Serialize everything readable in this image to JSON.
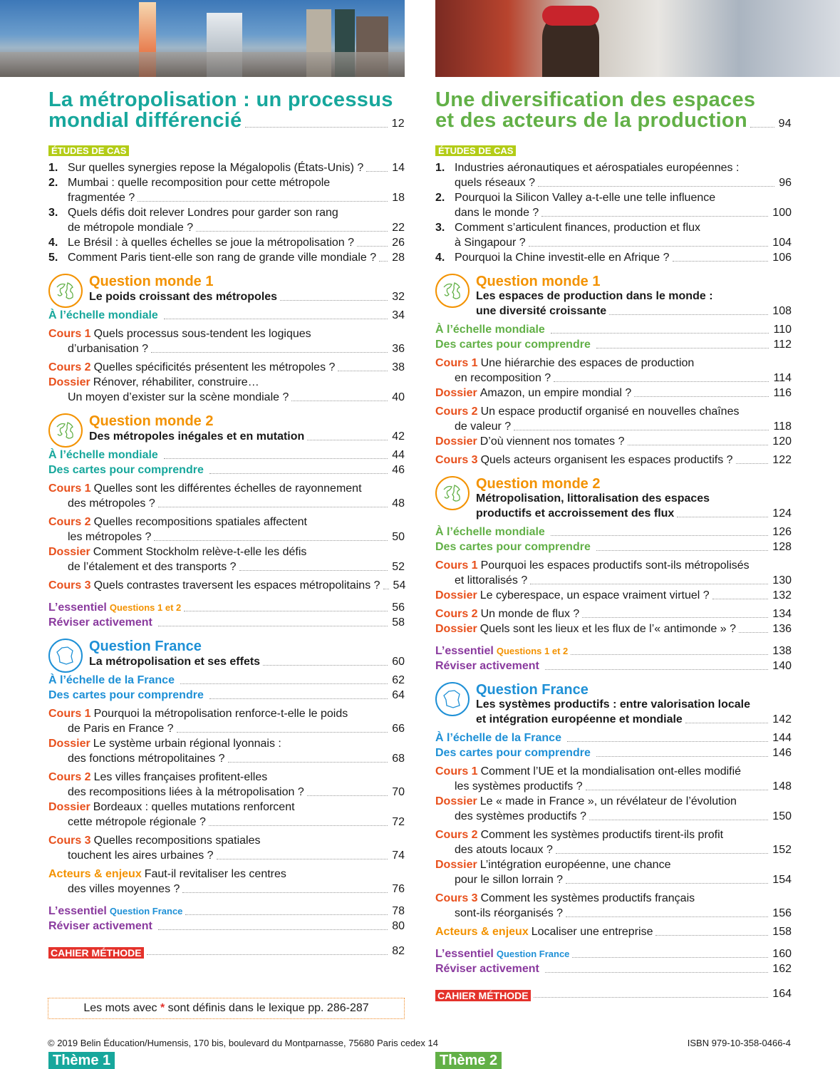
{
  "colors": {
    "theme1": "#17a79c",
    "theme2": "#62b047",
    "question_monde": "#f39200",
    "question_france": "#1e90d6",
    "cours": "#e8501c",
    "acteurs": "#f39200",
    "essentiel": "#8a3a9e",
    "cahier": "#e4322b",
    "etudes_tag": "#b3cc17"
  },
  "columns": [
    {
      "theme_label": "Thème 1",
      "title": [
        "La métropolisation : un processus",
        "mondial différencié"
      ],
      "title_page": "12",
      "etudes_label": "ÉTUDES DE CAS",
      "etudes": [
        {
          "num": "1.",
          "lines": [
            "Sur quelles synergies repose la Mégalopolis (États-Unis) ?"
          ],
          "page": "14"
        },
        {
          "num": "2.",
          "lines": [
            "Mumbai : quelle recomposition pour cette métropole",
            "fragmentée ?"
          ],
          "page": "18"
        },
        {
          "num": "3.",
          "lines": [
            "Quels défis doit relever Londres pour garder son rang",
            "de métropole mondiale ?"
          ],
          "page": "22"
        },
        {
          "num": "4.",
          "lines": [
            "Le Brésil : à quelles échelles se joue la métropolisation ?"
          ],
          "page": "26"
        },
        {
          "num": "5.",
          "lines": [
            "Comment Paris tient-elle son rang de grande ville mondiale ?"
          ],
          "page": "28"
        }
      ],
      "blocks": [
        {
          "type": "question",
          "kind": "monde",
          "title": "Question monde 1",
          "subtitle": [
            "Le poids croissant des métropoles"
          ],
          "page": "32"
        },
        {
          "type": "group",
          "entries": [
            {
              "kind": "section",
              "label": "À l’échelle mondiale",
              "page": "34"
            }
          ]
        },
        {
          "type": "group",
          "entries": [
            {
              "kind": "cours",
              "label": "Cours 1",
              "lines": [
                "Quels processus sous-tendent les logiques",
                "d’urbanisation ?"
              ],
              "page": "36"
            }
          ]
        },
        {
          "type": "group",
          "entries": [
            {
              "kind": "cours",
              "label": "Cours 2",
              "lines": [
                "Quelles spécificités présentent les métropoles ?"
              ],
              "page": "38"
            },
            {
              "kind": "cours",
              "label": "Dossier",
              "lines": [
                "Rénover, réhabiliter, construire…",
                "Un moyen d’exister sur la scène mondiale ?"
              ],
              "page": "40"
            }
          ]
        },
        {
          "type": "question",
          "kind": "monde",
          "title": "Question monde 2",
          "subtitle": [
            "Des métropoles inégales et en mutation"
          ],
          "page": "42"
        },
        {
          "type": "group",
          "entries": [
            {
              "kind": "section",
              "label": "À l’échelle mondiale",
              "page": "44"
            },
            {
              "kind": "section",
              "label": "Des cartes pour comprendre",
              "page": "46"
            }
          ]
        },
        {
          "type": "group",
          "entries": [
            {
              "kind": "cours",
              "label": "Cours 1",
              "lines": [
                "Quelles sont les différentes échelles de rayonnement",
                "des métropoles ?"
              ],
              "page": "48"
            }
          ]
        },
        {
          "type": "group",
          "entries": [
            {
              "kind": "cours",
              "label": "Cours 2",
              "lines": [
                "Quelles recompositions spatiales affectent",
                "les métropoles ?"
              ],
              "page": "50"
            },
            {
              "kind": "cours",
              "label": "Dossier",
              "lines": [
                "Comment Stockholm relève-t-elle les défis",
                "de l’étalement et des transports ?"
              ],
              "page": "52"
            }
          ]
        },
        {
          "type": "group",
          "entries": [
            {
              "kind": "cours",
              "label": "Cours 3",
              "lines": [
                "Quels contrastes traversent les espaces métropolitains ?"
              ],
              "page": "54"
            }
          ]
        },
        {
          "type": "group",
          "entries": [
            {
              "kind": "essentiel",
              "label": "L’essentiel",
              "sub": "Questions 1 et 2",
              "sub_kind": "monde",
              "page": "56"
            },
            {
              "kind": "essentiel",
              "label": "Réviser activement",
              "page": "58"
            }
          ]
        },
        {
          "type": "question",
          "kind": "france",
          "title": "Question France",
          "subtitle": [
            "La métropolisation et ses effets"
          ],
          "page": "60"
        },
        {
          "type": "group",
          "entries": [
            {
              "kind": "france",
              "label": "À l’échelle de la France",
              "page": "62"
            },
            {
              "kind": "france",
              "label": "Des cartes pour comprendre",
              "page": "64"
            }
          ]
        },
        {
          "type": "group",
          "entries": [
            {
              "kind": "cours",
              "label": "Cours 1",
              "lines": [
                "Pourquoi la métropolisation renforce-t-elle le poids",
                "de Paris en France ?"
              ],
              "page": "66"
            },
            {
              "kind": "cours",
              "label": "Dossier",
              "lines": [
                "Le système urbain régional lyonnais :",
                "des fonctions métropolitaines ?"
              ],
              "page": "68"
            }
          ]
        },
        {
          "type": "group",
          "entries": [
            {
              "kind": "cours",
              "label": "Cours 2",
              "lines": [
                "Les villes françaises profitent-elles",
                "des recompositions liées à la métropolisation ?"
              ],
              "page": "70"
            },
            {
              "kind": "cours",
              "label": "Dossier",
              "lines": [
                "Bordeaux : quelles mutations renforcent",
                "cette métropole régionale ?"
              ],
              "page": "72"
            }
          ]
        },
        {
          "type": "group",
          "entries": [
            {
              "kind": "cours",
              "label": "Cours 3",
              "lines": [
                "Quelles recompositions spatiales",
                "touchent les aires urbaines ?"
              ],
              "page": "74"
            }
          ]
        },
        {
          "type": "group",
          "entries": [
            {
              "kind": "acteurs",
              "label": "Acteurs & enjeux",
              "lines": [
                "Faut-il revitaliser les centres",
                "des villes moyennes ?"
              ],
              "page": "76"
            }
          ]
        },
        {
          "type": "group",
          "entries": [
            {
              "kind": "essentiel",
              "label": "L’essentiel",
              "sub": "Question France",
              "sub_kind": "france",
              "page": "78"
            },
            {
              "kind": "essentiel",
              "label": "Réviser activement",
              "page": "80"
            }
          ]
        },
        {
          "type": "group",
          "entries": [
            {
              "kind": "cahier",
              "label": "CAHIER MÉTHODE",
              "page": "82"
            }
          ]
        }
      ]
    },
    {
      "theme_label": "Thème 2",
      "title": [
        "Une diversification des espaces",
        "et des acteurs de la production"
      ],
      "title_page": "94",
      "etudes_label": "ÉTUDES DE CAS",
      "etudes": [
        {
          "num": "1.",
          "lines": [
            "Industries aéronautiques et aérospatiales européennes :",
            "quels réseaux ?"
          ],
          "page": "96"
        },
        {
          "num": "2.",
          "lines": [
            "Pourquoi la Silicon Valley a-t-elle une telle influence",
            "dans le monde ?"
          ],
          "page": "100"
        },
        {
          "num": "3.",
          "lines": [
            "Comment s’articulent finances, production et flux",
            "à Singapour ?"
          ],
          "page": "104"
        },
        {
          "num": "4.",
          "lines": [
            "Pourquoi la Chine investit-elle en Afrique ?"
          ],
          "page": "106"
        }
      ],
      "blocks": [
        {
          "type": "question",
          "kind": "monde",
          "title": "Question monde 1",
          "subtitle": [
            "Les espaces de production dans le monde :",
            "une diversité croissante"
          ],
          "page": "108"
        },
        {
          "type": "group",
          "entries": [
            {
              "kind": "section",
              "label": "À l’échelle mondiale",
              "page": "110"
            },
            {
              "kind": "section",
              "label": "Des cartes pour comprendre",
              "page": "112"
            }
          ]
        },
        {
          "type": "group",
          "entries": [
            {
              "kind": "cours",
              "label": "Cours 1",
              "lines": [
                "Une hiérarchie des espaces de production",
                "en recomposition ?"
              ],
              "page": "114"
            },
            {
              "kind": "cours",
              "label": "Dossier",
              "lines": [
                "Amazon, un empire mondial ?"
              ],
              "page": "116"
            }
          ]
        },
        {
          "type": "group",
          "entries": [
            {
              "kind": "cours",
              "label": "Cours 2",
              "lines": [
                "Un espace productif organisé en nouvelles chaînes",
                "de valeur ?"
              ],
              "page": "118"
            },
            {
              "kind": "cours",
              "label": "Dossier",
              "lines": [
                "D’où viennent nos tomates ?"
              ],
              "page": "120"
            }
          ]
        },
        {
          "type": "group",
          "entries": [
            {
              "kind": "cours",
              "label": "Cours 3",
              "lines": [
                "Quels acteurs organisent les espaces productifs ?"
              ],
              "page": "122"
            }
          ]
        },
        {
          "type": "question",
          "kind": "monde",
          "title": "Question monde 2",
          "subtitle": [
            "Métropolisation, littoralisation des espaces",
            "productifs et accroissement des flux"
          ],
          "page": "124"
        },
        {
          "type": "group",
          "entries": [
            {
              "kind": "section",
              "label": "À l’échelle mondiale",
              "page": "126"
            },
            {
              "kind": "section",
              "label": "Des cartes pour comprendre",
              "page": "128"
            }
          ]
        },
        {
          "type": "group",
          "entries": [
            {
              "kind": "cours",
              "label": "Cours 1",
              "lines": [
                "Pourquoi les espaces productifs sont-ils métropolisés",
                "et littoralisés ?"
              ],
              "page": "130"
            },
            {
              "kind": "cours",
              "label": "Dossier",
              "lines": [
                "Le cyberespace, un espace vraiment virtuel ?"
              ],
              "page": "132"
            }
          ]
        },
        {
          "type": "group",
          "entries": [
            {
              "kind": "cours",
              "label": "Cours 2",
              "lines": [
                "Un monde de flux ?"
              ],
              "page": "134"
            },
            {
              "kind": "cours",
              "label": "Dossier",
              "lines": [
                "Quels sont les lieux et les flux de l’« antimonde » ?"
              ],
              "page": "136"
            }
          ]
        },
        {
          "type": "group",
          "entries": [
            {
              "kind": "essentiel",
              "label": "L’essentiel",
              "sub": "Questions 1 et 2",
              "sub_kind": "monde",
              "page": "138"
            },
            {
              "kind": "essentiel",
              "label": "Réviser activement",
              "page": "140"
            }
          ]
        },
        {
          "type": "question",
          "kind": "france",
          "title": "Question France",
          "subtitle": [
            "Les systèmes productifs : entre valorisation locale",
            "et intégration européenne et mondiale"
          ],
          "page": "142"
        },
        {
          "type": "group",
          "entries": [
            {
              "kind": "france",
              "label": "À l’échelle de la France",
              "page": "144"
            },
            {
              "kind": "france",
              "label": "Des cartes pour comprendre",
              "page": "146"
            }
          ]
        },
        {
          "type": "group",
          "entries": [
            {
              "kind": "cours",
              "label": "Cours 1",
              "lines": [
                "Comment l’UE et la mondialisation ont-elles modifié",
                "les systèmes productifs ?"
              ],
              "page": "148"
            },
            {
              "kind": "cours",
              "label": "Dossier",
              "lines": [
                "Le « made in France », un révélateur de l’évolution",
                "des systèmes productifs ?"
              ],
              "page": "150"
            }
          ]
        },
        {
          "type": "group",
          "entries": [
            {
              "kind": "cours",
              "label": "Cours 2",
              "lines": [
                "Comment les systèmes productifs tirent-ils profit",
                "des atouts locaux ?"
              ],
              "page": "152"
            },
            {
              "kind": "cours",
              "label": "Dossier",
              "lines": [
                "L’intégration européenne, une chance",
                "pour le sillon lorrain ?"
              ],
              "page": "154"
            }
          ]
        },
        {
          "type": "group",
          "entries": [
            {
              "kind": "cours",
              "label": "Cours 3",
              "lines": [
                "Comment les systèmes productifs français",
                "sont-ils réorganisés ?"
              ],
              "page": "156"
            }
          ]
        },
        {
          "type": "group",
          "entries": [
            {
              "kind": "acteurs",
              "label": "Acteurs & enjeux",
              "lines": [
                "Localiser une entreprise"
              ],
              "page": "158"
            }
          ]
        },
        {
          "type": "group",
          "entries": [
            {
              "kind": "essentiel",
              "label": "L’essentiel",
              "sub": "Question France",
              "sub_kind": "france",
              "page": "160"
            },
            {
              "kind": "essentiel",
              "label": "Réviser activement",
              "page": "162"
            }
          ]
        },
        {
          "type": "group",
          "entries": [
            {
              "kind": "cahier",
              "label": "CAHIER MÉTHODE",
              "page": "164"
            }
          ]
        }
      ]
    }
  ],
  "note": {
    "before": "Les mots avec",
    "star": "*",
    "after": "sont définis dans le lexique pp. 286-287"
  },
  "footer": {
    "copyright": "© 2019 Belin Éducation/Humensis, 170 bis, boulevard du Montparnasse, 75680 Paris cedex 14",
    "isbn": "ISBN 979-10-358-0466-4"
  }
}
